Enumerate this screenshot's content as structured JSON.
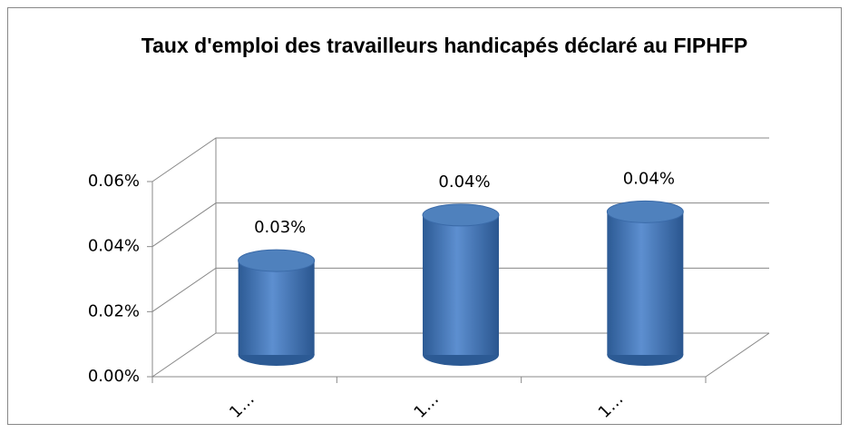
{
  "chart_data": {
    "type": "bar3d",
    "title": "Taux d'emploi des travailleurs handicapés déclaré au FIPHFP",
    "categories": [
      "1…",
      "1…",
      "1…"
    ],
    "values": [
      0.029,
      0.043,
      0.044
    ],
    "value_labels": [
      "0.03%",
      "0.04%",
      "0.04%"
    ],
    "color": "#4f81bd",
    "ylim": [
      0,
      0.06
    ],
    "yticks": [
      {
        "value": 0,
        "label": "0.00%"
      },
      {
        "value": 0.02,
        "label": "0.02%"
      },
      {
        "value": 0.04,
        "label": "0.04%"
      },
      {
        "value": 0.06,
        "label": "0.06%"
      }
    ],
    "grid": true
  }
}
